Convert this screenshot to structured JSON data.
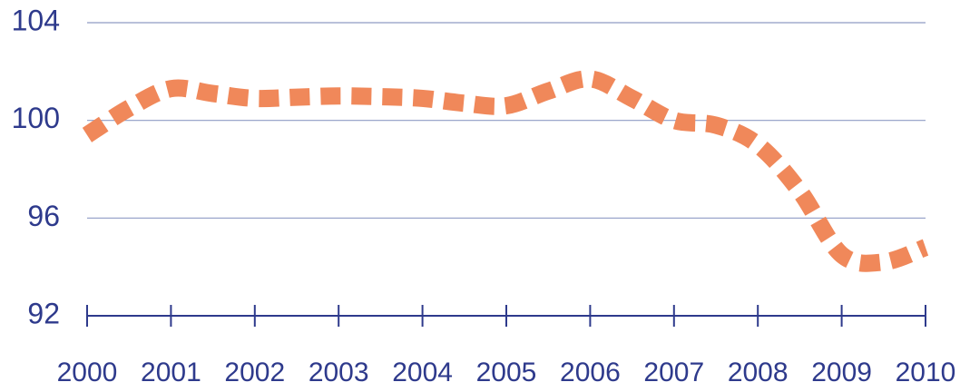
{
  "chart_data": {
    "type": "line",
    "x": [
      2000,
      2000.5,
      2001,
      2001.5,
      2002,
      2002.5,
      2003,
      2003.5,
      2004,
      2004.5,
      2005,
      2005.5,
      2006,
      2006.5,
      2007,
      2007.5,
      2008,
      2008.5,
      2009,
      2009.5,
      2010
    ],
    "series": [
      {
        "color": "#f0885a",
        "values": [
          99.4,
          100.5,
          101.3,
          101.1,
          100.9,
          100.95,
          101.0,
          100.97,
          100.9,
          100.7,
          100.6,
          101.2,
          101.7,
          100.9,
          100.0,
          99.8,
          99.0,
          97.1,
          94.5,
          94.2,
          94.8
        ]
      }
    ],
    "xlim": [
      2000,
      2010
    ],
    "xticks": [
      2000,
      2001,
      2002,
      2003,
      2004,
      2005,
      2006,
      2007,
      2008,
      2009,
      2010
    ],
    "ylim": [
      92,
      104
    ],
    "yticks": [
      92,
      96,
      100,
      104
    ],
    "grid": true
  }
}
